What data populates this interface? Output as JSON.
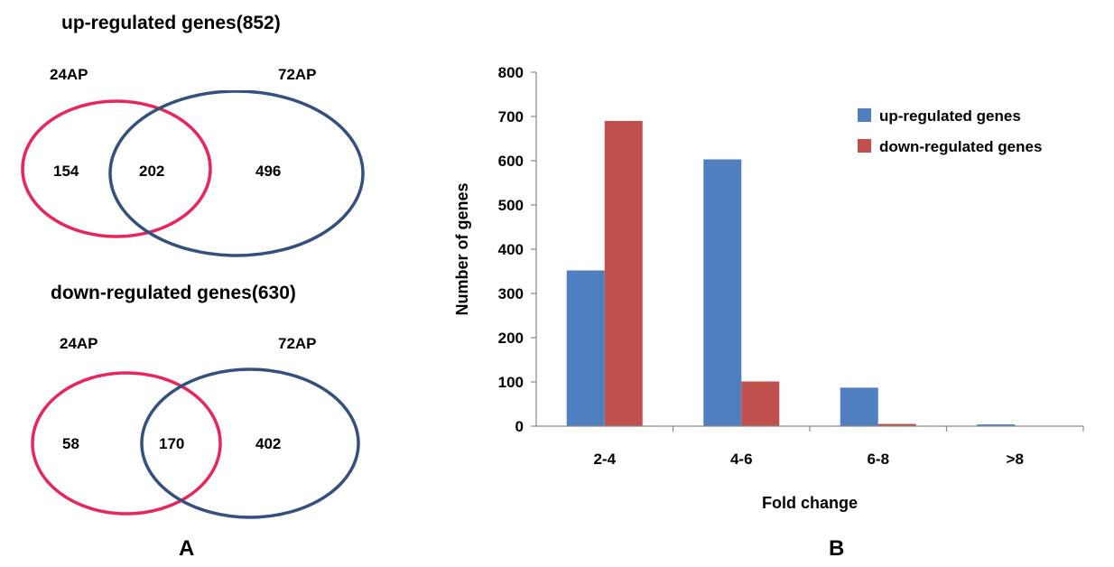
{
  "panel_a": {
    "label": "A",
    "venns": [
      {
        "title": "up-regulated genes(852)",
        "set_left": "24AP",
        "set_right": "72AP",
        "left_only": "154",
        "overlap": "202",
        "right_only": "496"
      },
      {
        "title": "down-regulated genes(630)",
        "set_left": "24AP",
        "set_right": "72AP",
        "left_only": "58",
        "overlap": "170",
        "right_only": "402"
      }
    ],
    "colors": {
      "left_circle": "#e8265e",
      "right_circle": "#33507e"
    }
  },
  "panel_b": {
    "label": "B"
  },
  "chart_data": {
    "type": "bar",
    "categories": [
      "2-4",
      "4-6",
      "6-8",
      ">8"
    ],
    "series": [
      {
        "name": "up-regulated genes",
        "values": [
          352,
          603,
          87,
          4
        ],
        "color": "#4f7fbf"
      },
      {
        "name": "down-regulated genes",
        "values": [
          690,
          101,
          5,
          0
        ],
        "color": "#c0504d"
      }
    ],
    "xlabel": "Fold change",
    "ylabel": "Number of genes",
    "ylim": [
      0,
      800
    ],
    "yticks": [
      "0",
      "100",
      "200",
      "300",
      "400",
      "500",
      "600",
      "700",
      "800"
    ],
    "grid": false,
    "legend_position": "top-right"
  }
}
